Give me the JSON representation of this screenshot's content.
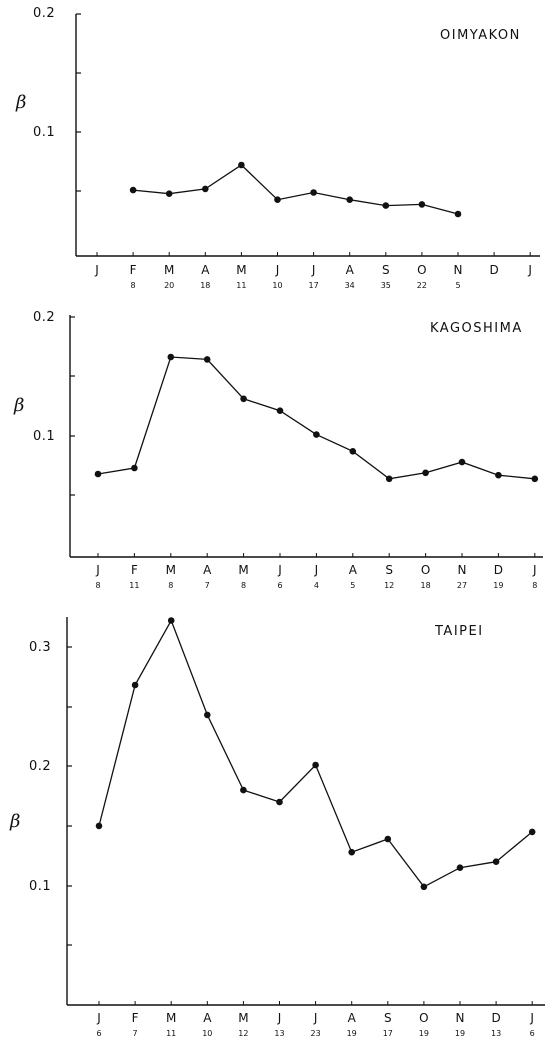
{
  "chart_data": [
    {
      "type": "line",
      "title": "OIMYAKON",
      "ylabel": "β",
      "yticks": [
        "0.1",
        "0.2"
      ],
      "ylim": [
        0,
        0.2
      ],
      "months": [
        "J",
        "F",
        "M",
        "A",
        "M",
        "J",
        "J",
        "A",
        "S",
        "O",
        "N",
        "D",
        "J"
      ],
      "counts": [
        "",
        "8",
        "20",
        "18",
        "11",
        "10",
        "17",
        "34",
        "35",
        "22",
        "5",
        "",
        ""
      ],
      "values": [
        null,
        0.051,
        0.048,
        0.052,
        0.072,
        0.043,
        0.049,
        0.043,
        0.038,
        0.039,
        0.031,
        null,
        null
      ]
    },
    {
      "type": "line",
      "title": "KAGOSHIMA",
      "ylabel": "β",
      "yticks": [
        "0.1",
        "0.2"
      ],
      "ylim": [
        0,
        0.2
      ],
      "months": [
        "J",
        "F",
        "M",
        "A",
        "M",
        "J",
        "J",
        "A",
        "S",
        "O",
        "N",
        "D",
        "J"
      ],
      "counts": [
        "8",
        "11",
        "8",
        "7",
        "8",
        "6",
        "4",
        "5",
        "12",
        "18",
        "27",
        "19",
        "8"
      ],
      "values": [
        0.067,
        0.072,
        0.165,
        0.163,
        0.13,
        0.12,
        0.1,
        0.086,
        0.063,
        0.068,
        0.077,
        0.066,
        0.063
      ]
    },
    {
      "type": "line",
      "title": "TAIPEI",
      "ylabel": "β",
      "yticks": [
        "0.1",
        "0.2",
        "0.3"
      ],
      "ylim": [
        0,
        0.3
      ],
      "months": [
        "J",
        "F",
        "M",
        "A",
        "M",
        "J",
        "J",
        "A",
        "S",
        "O",
        "N",
        "D",
        "J"
      ],
      "counts": [
        "6",
        "7",
        "11",
        "10",
        "12",
        "13",
        "23",
        "19",
        "17",
        "19",
        "19",
        "13",
        "6"
      ],
      "values": [
        0.15,
        0.268,
        0.322,
        0.243,
        0.18,
        0.17,
        0.201,
        0.128,
        0.139,
        0.099,
        0.115,
        0.12,
        0.145
      ]
    }
  ]
}
